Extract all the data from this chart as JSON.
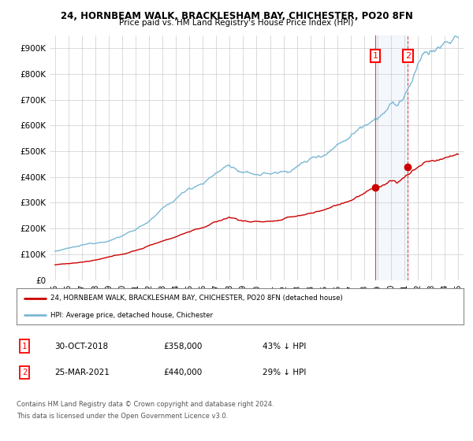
{
  "title": "24, HORNBEAM WALK, BRACKLESHAM BAY, CHICHESTER, PO20 8FN",
  "subtitle": "Price paid vs. HM Land Registry's House Price Index (HPI)",
  "hpi_color": "#7ab8d4",
  "price_color": "#cc0000",
  "sale1_date": "30-OCT-2018",
  "sale1_price": "£358,000",
  "sale1_pct": "43% ↓ HPI",
  "sale2_date": "25-MAR-2021",
  "sale2_price": "£440,000",
  "sale2_pct": "29% ↓ HPI",
  "legend_line1": "24, HORNBEAM WALK, BRACKLESHAM BAY, CHICHESTER, PO20 8FN (detached house)",
  "legend_line2": "HPI: Average price, detached house, Chichester",
  "footer1": "Contains HM Land Registry data © Crown copyright and database right 2024.",
  "footer2": "This data is licensed under the Open Government Licence v3.0.",
  "ylim": [
    0,
    950000
  ],
  "yticks": [
    0,
    100000,
    200000,
    300000,
    400000,
    500000,
    600000,
    700000,
    800000,
    900000
  ],
  "background_color": "#ffffff",
  "grid_color": "#cccccc",
  "date1": 2018.833,
  "date2": 2021.25,
  "sale1_value": 358000,
  "sale2_value": 440000
}
